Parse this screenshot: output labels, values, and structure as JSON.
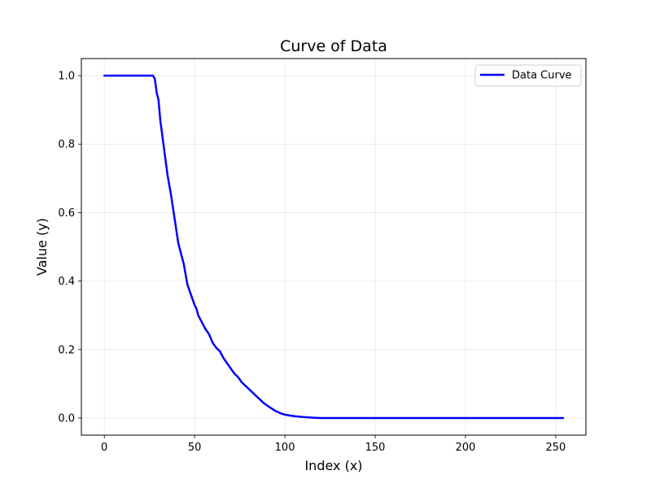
{
  "chart_data": {
    "type": "line",
    "title": "Curve of Data",
    "xlabel": "Index (x)",
    "ylabel": "Value (y)",
    "xlim": [
      -12.7,
      266.7
    ],
    "ylim": [
      -0.05,
      1.05
    ],
    "xticks": [
      0,
      50,
      100,
      150,
      200,
      250
    ],
    "yticks": [
      0.0,
      0.2,
      0.4,
      0.6,
      0.8,
      1.0
    ],
    "xtick_labels": [
      "0",
      "50",
      "100",
      "150",
      "200",
      "250"
    ],
    "ytick_labels": [
      "0.0",
      "0.2",
      "0.4",
      "0.6",
      "0.8",
      "1.0"
    ],
    "grid": true,
    "legend_position": "top-right",
    "series": [
      {
        "name": "Data Curve",
        "color": "#0000ff",
        "x": [
          0,
          27,
          28,
          29,
          30,
          31,
          33,
          35,
          37,
          39,
          41,
          43,
          44,
          45,
          46,
          48,
          50,
          51,
          52,
          54,
          56,
          58,
          60,
          62,
          64,
          66,
          68,
          70,
          72,
          74,
          76,
          78,
          80,
          82,
          84,
          86,
          88,
          90,
          92,
          95,
          98,
          100,
          103,
          106,
          110,
          115,
          120,
          130,
          150,
          200,
          254
        ],
        "y": [
          1.0,
          1.0,
          0.99,
          0.95,
          0.93,
          0.87,
          0.79,
          0.71,
          0.65,
          0.58,
          0.51,
          0.47,
          0.45,
          0.42,
          0.39,
          0.36,
          0.33,
          0.32,
          0.3,
          0.28,
          0.26,
          0.245,
          0.22,
          0.205,
          0.195,
          0.175,
          0.16,
          0.145,
          0.13,
          0.12,
          0.105,
          0.095,
          0.085,
          0.075,
          0.065,
          0.055,
          0.045,
          0.037,
          0.03,
          0.02,
          0.013,
          0.01,
          0.007,
          0.005,
          0.003,
          0.001,
          0.0,
          0.0,
          0.0,
          0.0,
          0.0
        ]
      }
    ]
  }
}
